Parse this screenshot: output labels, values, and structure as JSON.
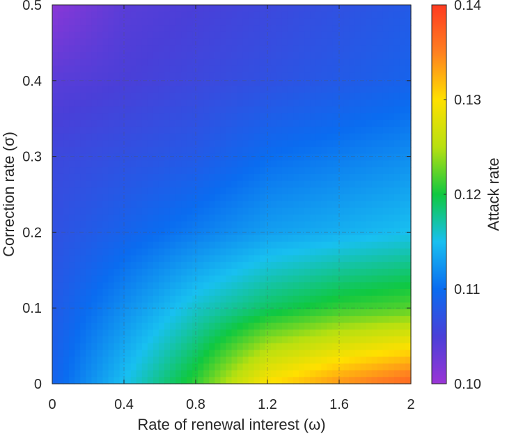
{
  "chart_data": {
    "type": "heatmap",
    "title": "",
    "xlabel": "Rate of renewal interest (ω)",
    "ylabel": "Correction rate (σ)",
    "colorbar_label": "Attack rate",
    "xlim": [
      0,
      2
    ],
    "ylim": [
      0,
      0.5
    ],
    "clim": [
      0.1,
      0.14
    ],
    "x_ticks": [
      "0",
      "0.4",
      "0.8",
      "1.2",
      "1.6",
      "2"
    ],
    "x_tick_values": [
      0,
      0.4,
      0.8,
      1.2,
      1.6,
      2
    ],
    "y_ticks": [
      "0",
      "0.1",
      "0.2",
      "0.3",
      "0.4",
      "0.5"
    ],
    "y_tick_values": [
      0,
      0.1,
      0.2,
      0.3,
      0.4,
      0.5
    ],
    "colorbar_ticks": [
      "0.10",
      "0.11",
      "0.12",
      "0.13",
      "0.14"
    ],
    "colorbar_tick_values": [
      0.1,
      0.11,
      0.12,
      0.13,
      0.14
    ],
    "grid": true,
    "colormap": [
      "#9a35d6",
      "#4a3fd8",
      "#0a6cf0",
      "#18c0f0",
      "#10c840",
      "#b8e010",
      "#ffe000",
      "#ff8020",
      "#ff3a20"
    ],
    "x": [
      0,
      0.4,
      0.8,
      1.2,
      1.6,
      2.0
    ],
    "y": [
      0,
      0.1,
      0.2,
      0.3,
      0.4,
      0.5
    ],
    "z": [
      [
        0.109,
        0.115,
        0.121,
        0.13,
        0.134,
        0.137
      ],
      [
        0.108,
        0.112,
        0.116,
        0.119,
        0.121,
        0.122
      ],
      [
        0.107,
        0.109,
        0.111,
        0.113,
        0.114,
        0.115
      ],
      [
        0.106,
        0.107,
        0.108,
        0.11,
        0.111,
        0.112
      ],
      [
        0.104,
        0.105,
        0.106,
        0.107,
        0.108,
        0.109
      ],
      [
        0.101,
        0.104,
        0.105,
        0.106,
        0.107,
        0.108
      ]
    ]
  }
}
